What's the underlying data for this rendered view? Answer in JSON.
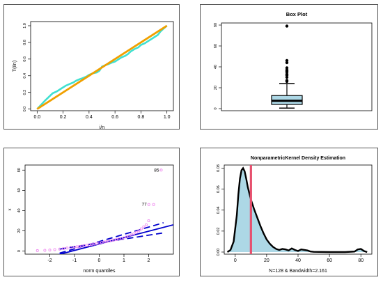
{
  "colors": {
    "ecdf_line": "#40e0d0",
    "reference_line": "#f0a000",
    "qq_points": "#ee82ee",
    "qq_lines": "#0000cd",
    "box_fill": "#add8e6",
    "density_fill": "#add8e6",
    "density_line": "#000000",
    "median_line": "#e6506e"
  },
  "chart_data": [
    {
      "id": "pp",
      "type": "line",
      "title": "",
      "xlabel": "i/n",
      "ylabel": "T(i/n)",
      "xlim": [
        -0.05,
        1.05
      ],
      "ylim": [
        -0.02,
        1.05
      ],
      "xticks": [
        "0.0",
        "0.2",
        "0.4",
        "0.6",
        "0.8",
        "1.0"
      ],
      "yticks": [
        "0.0",
        "0.2",
        "0.4",
        "0.6",
        "0.8",
        "1.0"
      ],
      "series": [
        {
          "x": [
            0,
            0.03,
            0.06,
            0.08,
            0.1,
            0.12,
            0.15,
            0.18,
            0.2,
            0.22,
            0.25,
            0.28,
            0.3,
            0.33,
            0.35,
            0.38,
            0.4,
            0.43,
            0.46,
            0.48,
            0.5,
            0.53,
            0.55,
            0.58,
            0.6,
            0.63,
            0.65,
            0.68,
            0.7,
            0.72,
            0.75,
            0.78,
            0.8,
            0.83,
            0.85,
            0.88,
            0.9,
            0.93,
            0.95,
            0.97,
            1
          ],
          "y": [
            0,
            0.05,
            0.1,
            0.13,
            0.16,
            0.19,
            0.21,
            0.24,
            0.26,
            0.28,
            0.3,
            0.32,
            0.34,
            0.36,
            0.37,
            0.39,
            0.41,
            0.43,
            0.44,
            0.46,
            0.51,
            0.53,
            0.54,
            0.56,
            0.57,
            0.6,
            0.62,
            0.64,
            0.66,
            0.69,
            0.72,
            0.74,
            0.77,
            0.79,
            0.81,
            0.84,
            0.86,
            0.89,
            0.93,
            0.96,
            1
          ]
        },
        {
          "x": [
            0,
            1
          ],
          "y": [
            0,
            1
          ]
        }
      ]
    },
    {
      "id": "box",
      "type": "box",
      "title": "Box Plot",
      "ylim": [
        -2,
        82
      ],
      "yticks": [
        "0",
        "20",
        "40",
        "60",
        "80"
      ],
      "ytick_values": [
        0,
        20,
        40,
        60,
        80
      ],
      "min": 0.5,
      "q1": 4,
      "median": 7.5,
      "q3": 12.5,
      "max": 24,
      "outliers": [
        26,
        27,
        30,
        32,
        33,
        35,
        36,
        37,
        39,
        44,
        46,
        79
      ]
    },
    {
      "id": "qq",
      "type": "scatter",
      "title": "",
      "xlabel": "norm quantiles",
      "ylabel": "x",
      "xlim": [
        -3,
        3
      ],
      "ylim": [
        -3,
        85
      ],
      "xticks": [
        "-2",
        "-1",
        "0",
        "1",
        "2"
      ],
      "xtick_values": [
        -2,
        -1,
        0,
        1,
        2
      ],
      "yticks": [
        "0",
        "20",
        "40",
        "60",
        "80"
      ],
      "ytick_values": [
        0,
        20,
        40,
        60,
        80
      ],
      "points": {
        "x": [
          -2.5,
          -2.2,
          -2.0,
          -1.8,
          -1.6,
          -1.45,
          -1.3,
          -1.15,
          -1.0,
          -0.9,
          -0.8,
          -0.7,
          -0.6,
          -0.5,
          -0.4,
          -0.3,
          -0.2,
          -0.1,
          0.0,
          0.1,
          0.2,
          0.3,
          0.4,
          0.5,
          0.6,
          0.7,
          0.8,
          0.9,
          1.0,
          1.1,
          1.2,
          1.3,
          1.4,
          1.5,
          1.6,
          1.7,
          1.8,
          1.9,
          2.0,
          2.2
        ],
        "y": [
          0.5,
          0.8,
          1.0,
          1.5,
          2.0,
          2.5,
          3.0,
          3.5,
          4.0,
          4.3,
          4.6,
          5.0,
          5.4,
          5.8,
          6.2,
          6.6,
          7.0,
          7.5,
          8.0,
          8.5,
          9.0,
          9.5,
          10.0,
          10.5,
          11.0,
          11.5,
          12.0,
          12.5,
          13.0,
          14.0,
          15.0,
          16.0,
          17.0,
          18.5,
          20.0,
          22.0,
          24.0,
          26.0,
          30.0,
          46.0
        ]
      },
      "point_labels": [
        {
          "text": "85",
          "x": 2.45,
          "y": 80
        },
        {
          "text": "77",
          "x": 1.95,
          "y": 46
        }
      ],
      "lines": [
        {
          "style": "solid",
          "x": [
            -3,
            3
          ],
          "y": [
            -12,
            26
          ]
        },
        {
          "style": "dashed",
          "x": [
            -1.6,
            2.6
          ],
          "y": [
            -2,
            28
          ]
        },
        {
          "style": "dashed",
          "x": [
            -1.6,
            2.6
          ],
          "y": [
            2,
            18
          ]
        }
      ]
    },
    {
      "id": "kde",
      "type": "area",
      "title": "NonparametricKernel Density Estimation",
      "xlabel": "N=128 & Bandwidth=2.161",
      "xlim": [
        -7,
        87
      ],
      "ylim": [
        -0.002,
        0.083
      ],
      "xticks": [
        "0",
        "20",
        "40",
        "60",
        "80"
      ],
      "xtick_values": [
        0,
        20,
        40,
        60,
        80
      ],
      "yticks": [
        "0.00",
        "0.02",
        "0.04",
        "0.06",
        "0.08"
      ],
      "ytick_values": [
        0,
        0.02,
        0.04,
        0.06,
        0.08
      ],
      "density": {
        "x": [
          -5,
          -3,
          -1,
          1,
          2,
          3,
          4,
          5,
          6,
          7,
          8,
          9,
          10,
          12,
          14,
          16,
          18,
          20,
          22,
          24,
          26,
          28,
          30,
          32,
          34,
          36,
          38,
          40,
          42,
          44,
          46,
          48,
          50,
          60,
          70,
          76,
          78,
          80,
          82,
          84
        ],
        "y": [
          0.0,
          0.002,
          0.01,
          0.035,
          0.055,
          0.07,
          0.078,
          0.08,
          0.077,
          0.07,
          0.062,
          0.056,
          0.05,
          0.041,
          0.033,
          0.025,
          0.018,
          0.012,
          0.008,
          0.005,
          0.003,
          0.002,
          0.003,
          0.0025,
          0.0015,
          0.0035,
          0.002,
          0.001,
          0.0025,
          0.002,
          0.0015,
          0.0005,
          0.0002,
          0.0,
          0.0,
          0.0005,
          0.0025,
          0.003,
          0.001,
          0.0
        ]
      },
      "vline_x": 10
    }
  ]
}
